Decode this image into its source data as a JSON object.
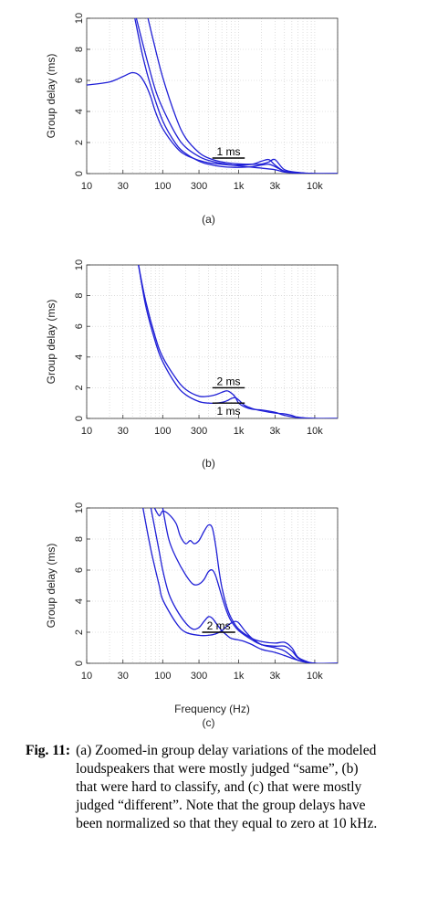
{
  "colors": {
    "curve": "#1f1fd6",
    "axis": "#333333",
    "grid": "#c8c8c8",
    "annotation": "#000000"
  },
  "chart_data": [
    {
      "type": "line",
      "panel_label": "(a)",
      "ylabel": "Group delay (ms)",
      "xlabel": "",
      "xscale": "log",
      "xlim": [
        10,
        20000
      ],
      "ylim": [
        0,
        10
      ],
      "xticks": [
        10,
        30,
        100,
        300,
        1000,
        3000,
        10000
      ],
      "xtick_labels": [
        "10",
        "30",
        "100",
        "300",
        "1k",
        "3k",
        "10k"
      ],
      "yticks": [
        0,
        2,
        4,
        6,
        8,
        10
      ],
      "ytick_labels": [
        "0",
        "2",
        "4",
        "6",
        "8",
        "10"
      ],
      "grid": true,
      "annotations": [
        {
          "text": "1 ms",
          "bar": {
            "x": [
              450,
              1200
            ],
            "y": 1.0
          }
        }
      ],
      "series": [
        {
          "x": [
            10,
            20,
            30,
            40,
            50,
            60,
            70,
            80,
            100,
            150,
            200,
            300,
            400,
            600,
            800,
            1000,
            1500,
            2000,
            2500,
            3000,
            4000,
            6000,
            10000,
            20000
          ],
          "y": [
            5.7,
            5.9,
            6.25,
            6.5,
            6.3,
            5.7,
            4.9,
            4.0,
            2.9,
            1.7,
            1.2,
            0.85,
            0.7,
            0.6,
            0.55,
            0.55,
            0.6,
            0.8,
            0.9,
            0.55,
            0.15,
            0.05,
            0,
            0
          ]
        },
        {
          "x": [
            43,
            55,
            70,
            100,
            150,
            200,
            300,
            400,
            600,
            1000,
            1500,
            2000,
            2500,
            3000,
            4000,
            6000,
            10000,
            20000
          ],
          "y": [
            10.0,
            7.5,
            5.6,
            3.4,
            1.9,
            1.3,
            0.8,
            0.6,
            0.45,
            0.4,
            0.45,
            0.55,
            0.6,
            0.45,
            0.15,
            0.05,
            0,
            0
          ]
        },
        {
          "x": [
            45,
            60,
            80,
            100,
            150,
            200,
            300,
            400,
            600,
            1000,
            2000,
            3000,
            4000,
            6000,
            10000,
            20000
          ],
          "y": [
            10.0,
            7.6,
            5.4,
            4.2,
            2.5,
            1.7,
            1.1,
            0.85,
            0.65,
            0.5,
            0.35,
            0.25,
            0.1,
            0.03,
            0,
            0
          ]
        },
        {
          "x": [
            64,
            75,
            100,
            150,
            200,
            300,
            400,
            600,
            1000,
            1500,
            2000,
            2500,
            3000,
            4000,
            6000,
            10000,
            20000
          ],
          "y": [
            10.0,
            8.6,
            6.2,
            3.6,
            2.3,
            1.35,
            1.0,
            0.75,
            0.62,
            0.6,
            0.62,
            0.75,
            0.9,
            0.25,
            0.08,
            0,
            0
          ]
        }
      ]
    },
    {
      "type": "line",
      "panel_label": "(b)",
      "ylabel": "Group delay (ms)",
      "xlabel": "",
      "xscale": "log",
      "xlim": [
        10,
        20000
      ],
      "ylim": [
        0,
        10
      ],
      "xticks": [
        10,
        30,
        100,
        300,
        1000,
        3000,
        10000
      ],
      "xtick_labels": [
        "10",
        "30",
        "100",
        "300",
        "1k",
        "3k",
        "10k"
      ],
      "yticks": [
        0,
        2,
        4,
        6,
        8,
        10
      ],
      "ytick_labels": [
        "0",
        "2",
        "4",
        "6",
        "8",
        "10"
      ],
      "grid": true,
      "annotations": [
        {
          "text": "2 ms",
          "bar": {
            "x": [
              450,
              1200
            ],
            "y": 2.0
          }
        },
        {
          "text": "1 ms",
          "bar": {
            "x": [
              450,
              1200
            ],
            "y": 1.0
          }
        }
      ],
      "series": [
        {
          "x": [
            48,
            60,
            80,
            100,
            150,
            200,
            300,
            400,
            500,
            600,
            700,
            800,
            900,
            1000,
            1200,
            1500,
            2000,
            3000,
            4000,
            6000,
            10000,
            20000
          ],
          "y": [
            10.0,
            7.6,
            5.3,
            4.0,
            2.6,
            1.9,
            1.45,
            1.45,
            1.55,
            1.7,
            1.8,
            1.65,
            1.4,
            1.0,
            0.75,
            0.6,
            0.55,
            0.4,
            0.2,
            0.05,
            0,
            0
          ]
        },
        {
          "x": [
            48,
            60,
            80,
            100,
            150,
            200,
            300,
            400,
            500,
            600,
            700,
            800,
            900,
            1000,
            1200,
            1500,
            2000,
            3000,
            4000,
            5000,
            6000,
            10000,
            20000
          ],
          "y": [
            10.0,
            7.3,
            5.0,
            3.7,
            2.2,
            1.55,
            1.1,
            1.0,
            1.0,
            1.05,
            1.15,
            1.3,
            1.35,
            1.2,
            0.85,
            0.65,
            0.5,
            0.35,
            0.3,
            0.2,
            0.08,
            0,
            0
          ]
        }
      ]
    },
    {
      "type": "line",
      "panel_label": "(c)",
      "ylabel": "Group delay (ms)",
      "xlabel": "Frequency (Hz)",
      "xscale": "log",
      "xlim": [
        10,
        20000
      ],
      "ylim": [
        0,
        10
      ],
      "xticks": [
        10,
        30,
        100,
        300,
        1000,
        3000,
        10000
      ],
      "xtick_labels": [
        "10",
        "30",
        "100",
        "300",
        "1k",
        "3k",
        "10k"
      ],
      "yticks": [
        0,
        2,
        4,
        6,
        8,
        10
      ],
      "ytick_labels": [
        "0",
        "2",
        "4",
        "6",
        "8",
        "10"
      ],
      "grid": true,
      "annotations": [
        {
          "text": "2 ms",
          "bar": {
            "x": [
              330,
              900
            ],
            "y": 2.0
          }
        }
      ],
      "series": [
        {
          "x": [
            78,
            90,
            100,
            120,
            150,
            170,
            200,
            230,
            260,
            300,
            350,
            400,
            450,
            500,
            550,
            600,
            700,
            800,
            1000,
            1500,
            2000,
            3000,
            4000,
            5000,
            6000,
            8000,
            10000,
            20000
          ],
          "y": [
            10.0,
            9.5,
            9.8,
            9.6,
            9.0,
            8.2,
            7.7,
            7.9,
            7.7,
            7.9,
            8.5,
            8.9,
            8.7,
            7.5,
            6.0,
            4.9,
            3.6,
            2.9,
            2.2,
            1.6,
            1.4,
            1.3,
            1.35,
            1.0,
            0.4,
            0.1,
            0,
            0
          ]
        },
        {
          "x": [
            100,
            120,
            150,
            200,
            250,
            300,
            350,
            400,
            450,
            500,
            600,
            700,
            800,
            1000,
            1500,
            2000,
            3000,
            4000,
            5000,
            6000,
            8000,
            10000,
            20000
          ],
          "y": [
            10.0,
            8.0,
            6.8,
            5.7,
            5.1,
            5.1,
            5.4,
            5.9,
            6.0,
            5.6,
            4.3,
            3.3,
            2.7,
            2.1,
            1.5,
            1.2,
            1.1,
            1.1,
            0.8,
            0.35,
            0.08,
            0,
            0
          ]
        },
        {
          "x": [
            70,
            90,
            100,
            120,
            150,
            200,
            250,
            300,
            350,
            400,
            450,
            500,
            600,
            700,
            800,
            1000,
            1200,
            1500,
            2000,
            3000,
            4000,
            6000,
            10000,
            20000
          ],
          "y": [
            10.0,
            7.2,
            6.0,
            4.5,
            3.5,
            2.6,
            2.2,
            2.3,
            2.7,
            3.0,
            2.9,
            2.6,
            2.1,
            1.8,
            1.6,
            1.5,
            1.4,
            1.2,
            0.9,
            0.7,
            0.5,
            0.2,
            0,
            0
          ]
        },
        {
          "x": [
            55,
            70,
            90,
            100,
            150,
            200,
            300,
            400,
            500,
            600,
            700,
            800,
            900,
            1000,
            1200,
            1500,
            2000,
            3000,
            4000,
            6000,
            10000,
            20000
          ],
          "y": [
            10.0,
            7.3,
            5.0,
            4.1,
            2.6,
            2.0,
            1.8,
            1.8,
            1.9,
            2.1,
            2.4,
            2.6,
            2.7,
            2.6,
            2.1,
            1.6,
            1.2,
            1.0,
            0.8,
            0.2,
            0,
            0
          ]
        }
      ]
    }
  ],
  "caption": {
    "fig_label": "Fig. 11:",
    "text": "(a) Zoomed-in group delay variations of the modeled loudspeakers that were mostly judged “same”, (b) that were hard to classify, and (c) that were mostly judged “different”. Note that the group delays have been normalized so that they equal to zero at 10 kHz."
  }
}
